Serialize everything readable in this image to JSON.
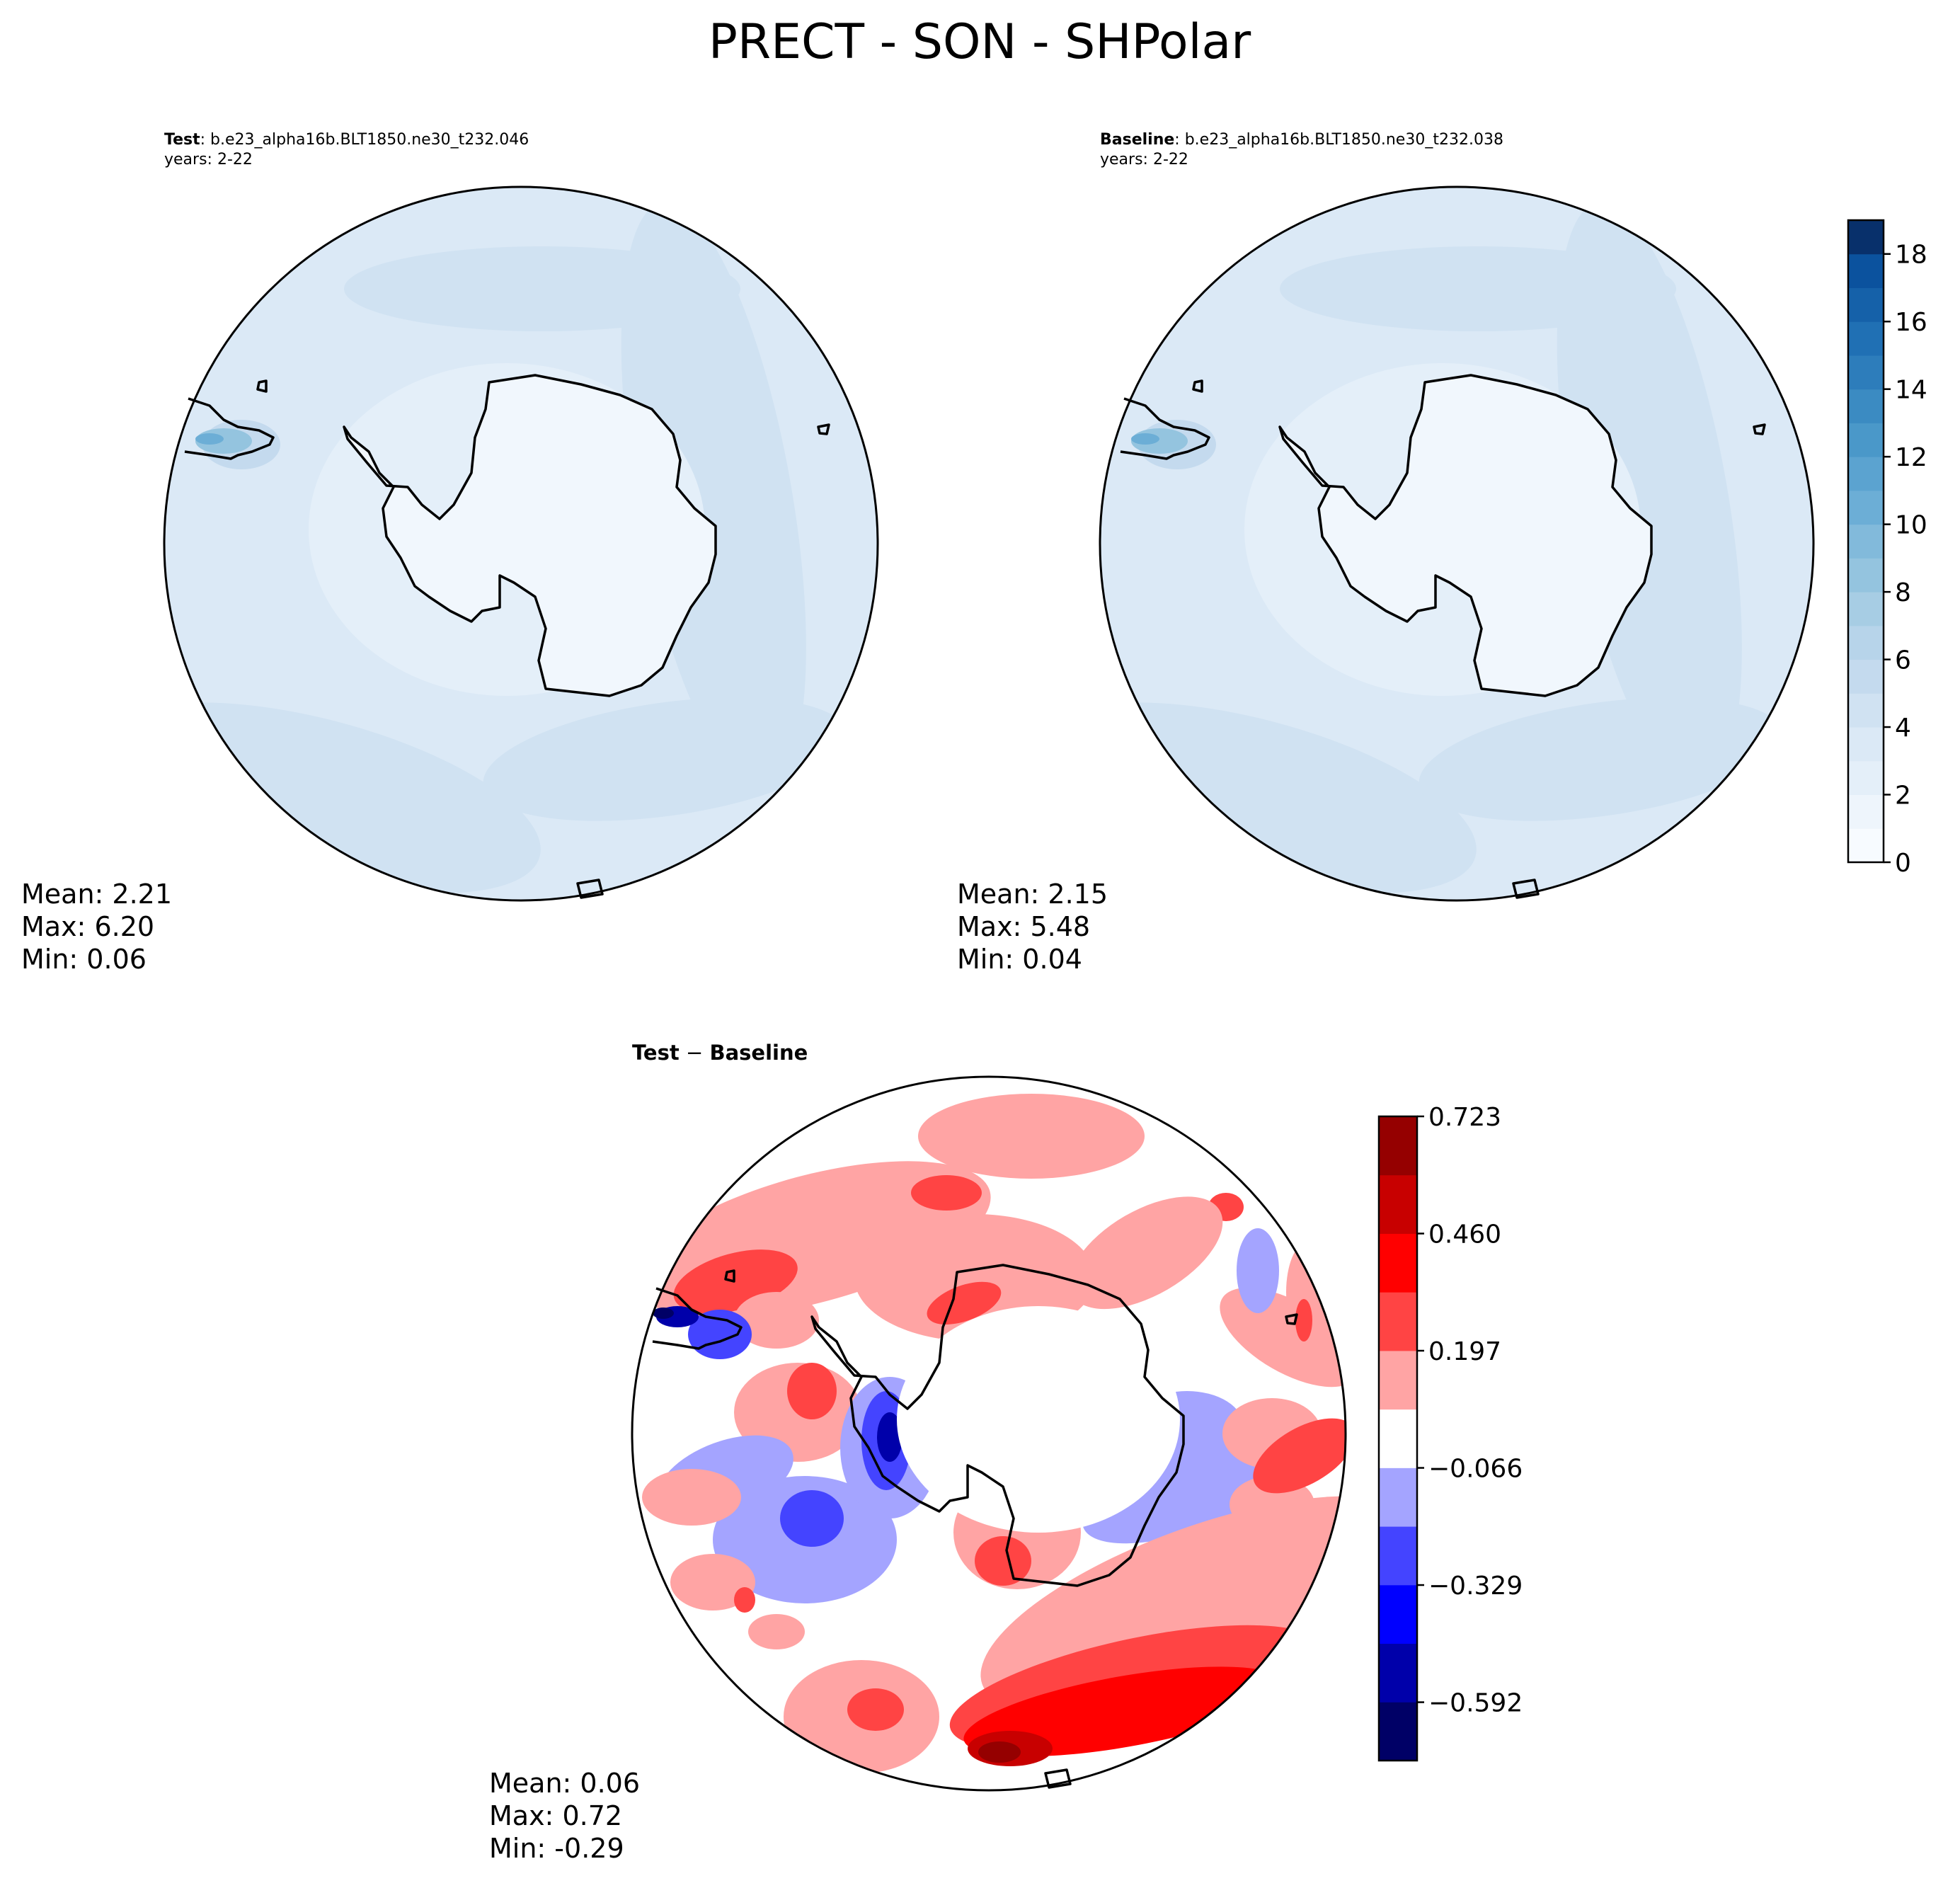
{
  "figure": {
    "title": "PRECT - SON - SHPolar"
  },
  "panels": {
    "test": {
      "label_bold": "Test",
      "label_rest": ": b.e23_alpha16b.BLT1850.ne30_t232.046",
      "years": "years: 2-22",
      "stats": {
        "mean": "Mean:  2.21",
        "max": "Max:  6.20",
        "min": "Min:  0.06"
      }
    },
    "baseline": {
      "label_bold": "Baseline",
      "label_rest": ": b.e23_alpha16b.BLT1850.ne30_t232.038",
      "years": "years: 2-22",
      "stats": {
        "mean": "Mean:  2.15",
        "max": "Max:  5.48",
        "min": "Min:  0.04"
      }
    },
    "diff": {
      "label_a": "Test",
      "label_sep": " − ",
      "label_b": "Baseline",
      "stats": {
        "mean": "Mean:  0.06",
        "max": "Max:  0.72",
        "min": "Min: -0.29"
      }
    }
  },
  "colorbars": {
    "blues": {
      "range": [
        0,
        19
      ],
      "ticks": [
        "0",
        "2",
        "4",
        "6",
        "8",
        "10",
        "12",
        "14",
        "16",
        "18"
      ],
      "tick_values": [
        0,
        2,
        4,
        6,
        8,
        10,
        12,
        14,
        16,
        18
      ],
      "levels": 19,
      "colors": [
        "#f7fbff",
        "#eef5fc",
        "#e4eff9",
        "#dbe9f6",
        "#d0e2f2",
        "#c4daee",
        "#b7d4ea",
        "#a7cde4",
        "#94c4df",
        "#82badb",
        "#6caed6",
        "#5ba3d0",
        "#4a98c9",
        "#3b8bc2",
        "#2d7dbb",
        "#2070b4",
        "#1561a9",
        "#0b529e",
        "#08306b"
      ]
    },
    "diverging": {
      "range": [
        -0.723,
        0.723
      ],
      "ticks": [
        "−0.592",
        "−0.329",
        "−0.066",
        "0.197",
        "0.460",
        "0.723"
      ],
      "tick_values": [
        -0.592,
        -0.329,
        -0.066,
        0.197,
        0.46,
        0.723
      ],
      "colors": [
        "#000066",
        "#0000aa",
        "#0000ff",
        "#4444ff",
        "#a4a4ff",
        "#ffffff",
        "#ffa4a4",
        "#ff4444",
        "#ff0000",
        "#c80000",
        "#950000"
      ]
    }
  }
}
